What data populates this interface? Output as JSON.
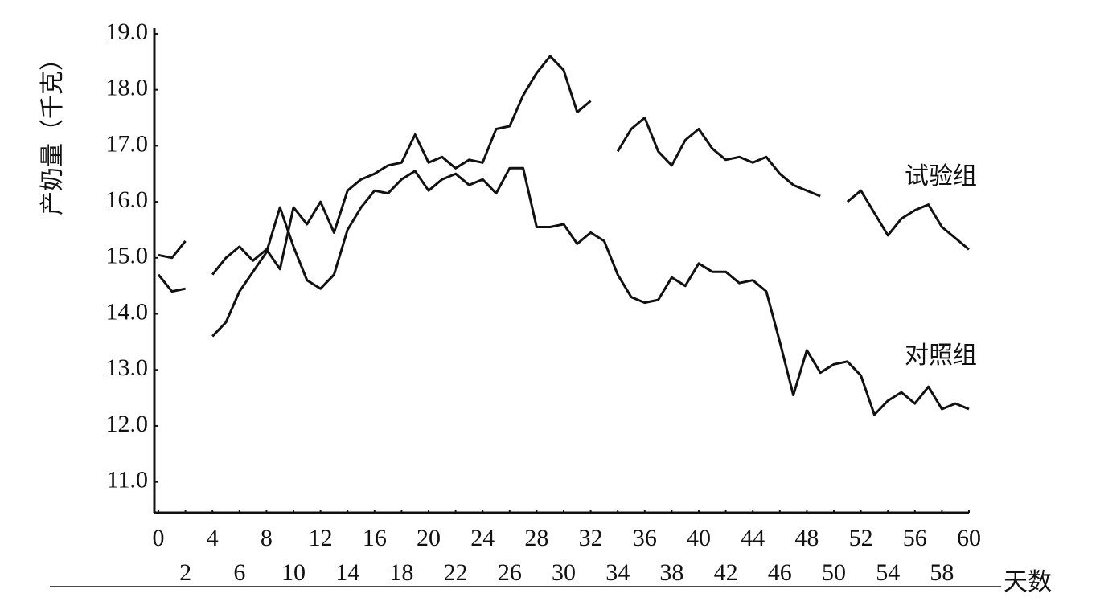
{
  "chart_data": {
    "type": "line",
    "y_label": "产奶量（千克）",
    "x_label": "天数",
    "x": [
      0,
      1,
      2,
      3,
      4,
      5,
      6,
      7,
      8,
      9,
      10,
      11,
      12,
      13,
      14,
      15,
      16,
      17,
      18,
      19,
      20,
      21,
      22,
      23,
      24,
      25,
      26,
      27,
      28,
      29,
      30,
      31,
      32,
      33,
      34,
      35,
      36,
      37,
      38,
      39,
      40,
      41,
      42,
      43,
      44,
      45,
      46,
      47,
      48,
      49,
      50,
      51,
      52,
      53,
      54,
      55,
      56,
      57,
      58,
      59,
      60
    ],
    "series": [
      {
        "name": "试验组",
        "color": "#111111",
        "values": [
          15.05,
          15.0,
          15.3,
          null,
          14.7,
          15.0,
          15.2,
          14.95,
          15.15,
          14.8,
          15.9,
          15.6,
          16.0,
          15.45,
          16.2,
          16.4,
          16.5,
          16.65,
          16.7,
          17.2,
          16.7,
          16.8,
          16.6,
          16.75,
          16.7,
          17.3,
          17.35,
          17.9,
          18.3,
          18.6,
          18.35,
          17.6,
          17.8,
          null,
          16.9,
          17.3,
          17.5,
          16.9,
          16.65,
          17.1,
          17.3,
          16.95,
          16.75,
          16.8,
          16.7,
          16.8,
          16.5,
          16.3,
          16.2,
          16.1,
          null,
          16.0,
          16.2,
          15.8,
          15.4,
          15.7,
          15.85,
          15.95,
          15.55,
          15.35,
          15.15
        ]
      },
      {
        "name": "对照组",
        "color": "#111111",
        "values": [
          14.7,
          14.4,
          14.45,
          null,
          13.6,
          13.85,
          14.4,
          14.75,
          15.1,
          15.9,
          15.2,
          14.6,
          14.45,
          14.7,
          15.5,
          15.9,
          16.2,
          16.15,
          16.4,
          16.55,
          16.2,
          16.4,
          16.5,
          16.3,
          16.4,
          16.15,
          16.6,
          16.6,
          15.55,
          15.55,
          15.6,
          15.25,
          15.45,
          15.3,
          14.7,
          14.3,
          14.2,
          14.25,
          14.65,
          14.5,
          14.9,
          14.75,
          14.75,
          14.55,
          14.6,
          14.4,
          13.5,
          12.55,
          13.35,
          12.95,
          13.1,
          13.15,
          12.9,
          12.2,
          12.45,
          12.6,
          12.4,
          12.7,
          12.3,
          12.4,
          12.3
        ]
      }
    ],
    "xlim": [
      -0.3,
      60
    ],
    "ylim": [
      10.45,
      19.1
    ],
    "xticks": [
      0,
      2,
      4,
      6,
      8,
      10,
      12,
      14,
      16,
      18,
      20,
      22,
      24,
      26,
      28,
      30,
      32,
      34,
      36,
      38,
      40,
      42,
      44,
      46,
      48,
      50,
      52,
      54,
      56,
      58,
      60
    ],
    "yticks": [
      {
        "value": 11,
        "label": "11.0"
      },
      {
        "value": 12,
        "label": "12.0"
      },
      {
        "value": 13,
        "label": "13.0"
      },
      {
        "value": 14,
        "label": "14.0"
      },
      {
        "value": 15,
        "label": "15.0"
      },
      {
        "value": 16,
        "label": "16.0"
      },
      {
        "value": 17,
        "label": "17.0"
      },
      {
        "value": 18,
        "label": "18.0"
      },
      {
        "value": 19,
        "label": "19.0"
      }
    ],
    "grid": false
  }
}
